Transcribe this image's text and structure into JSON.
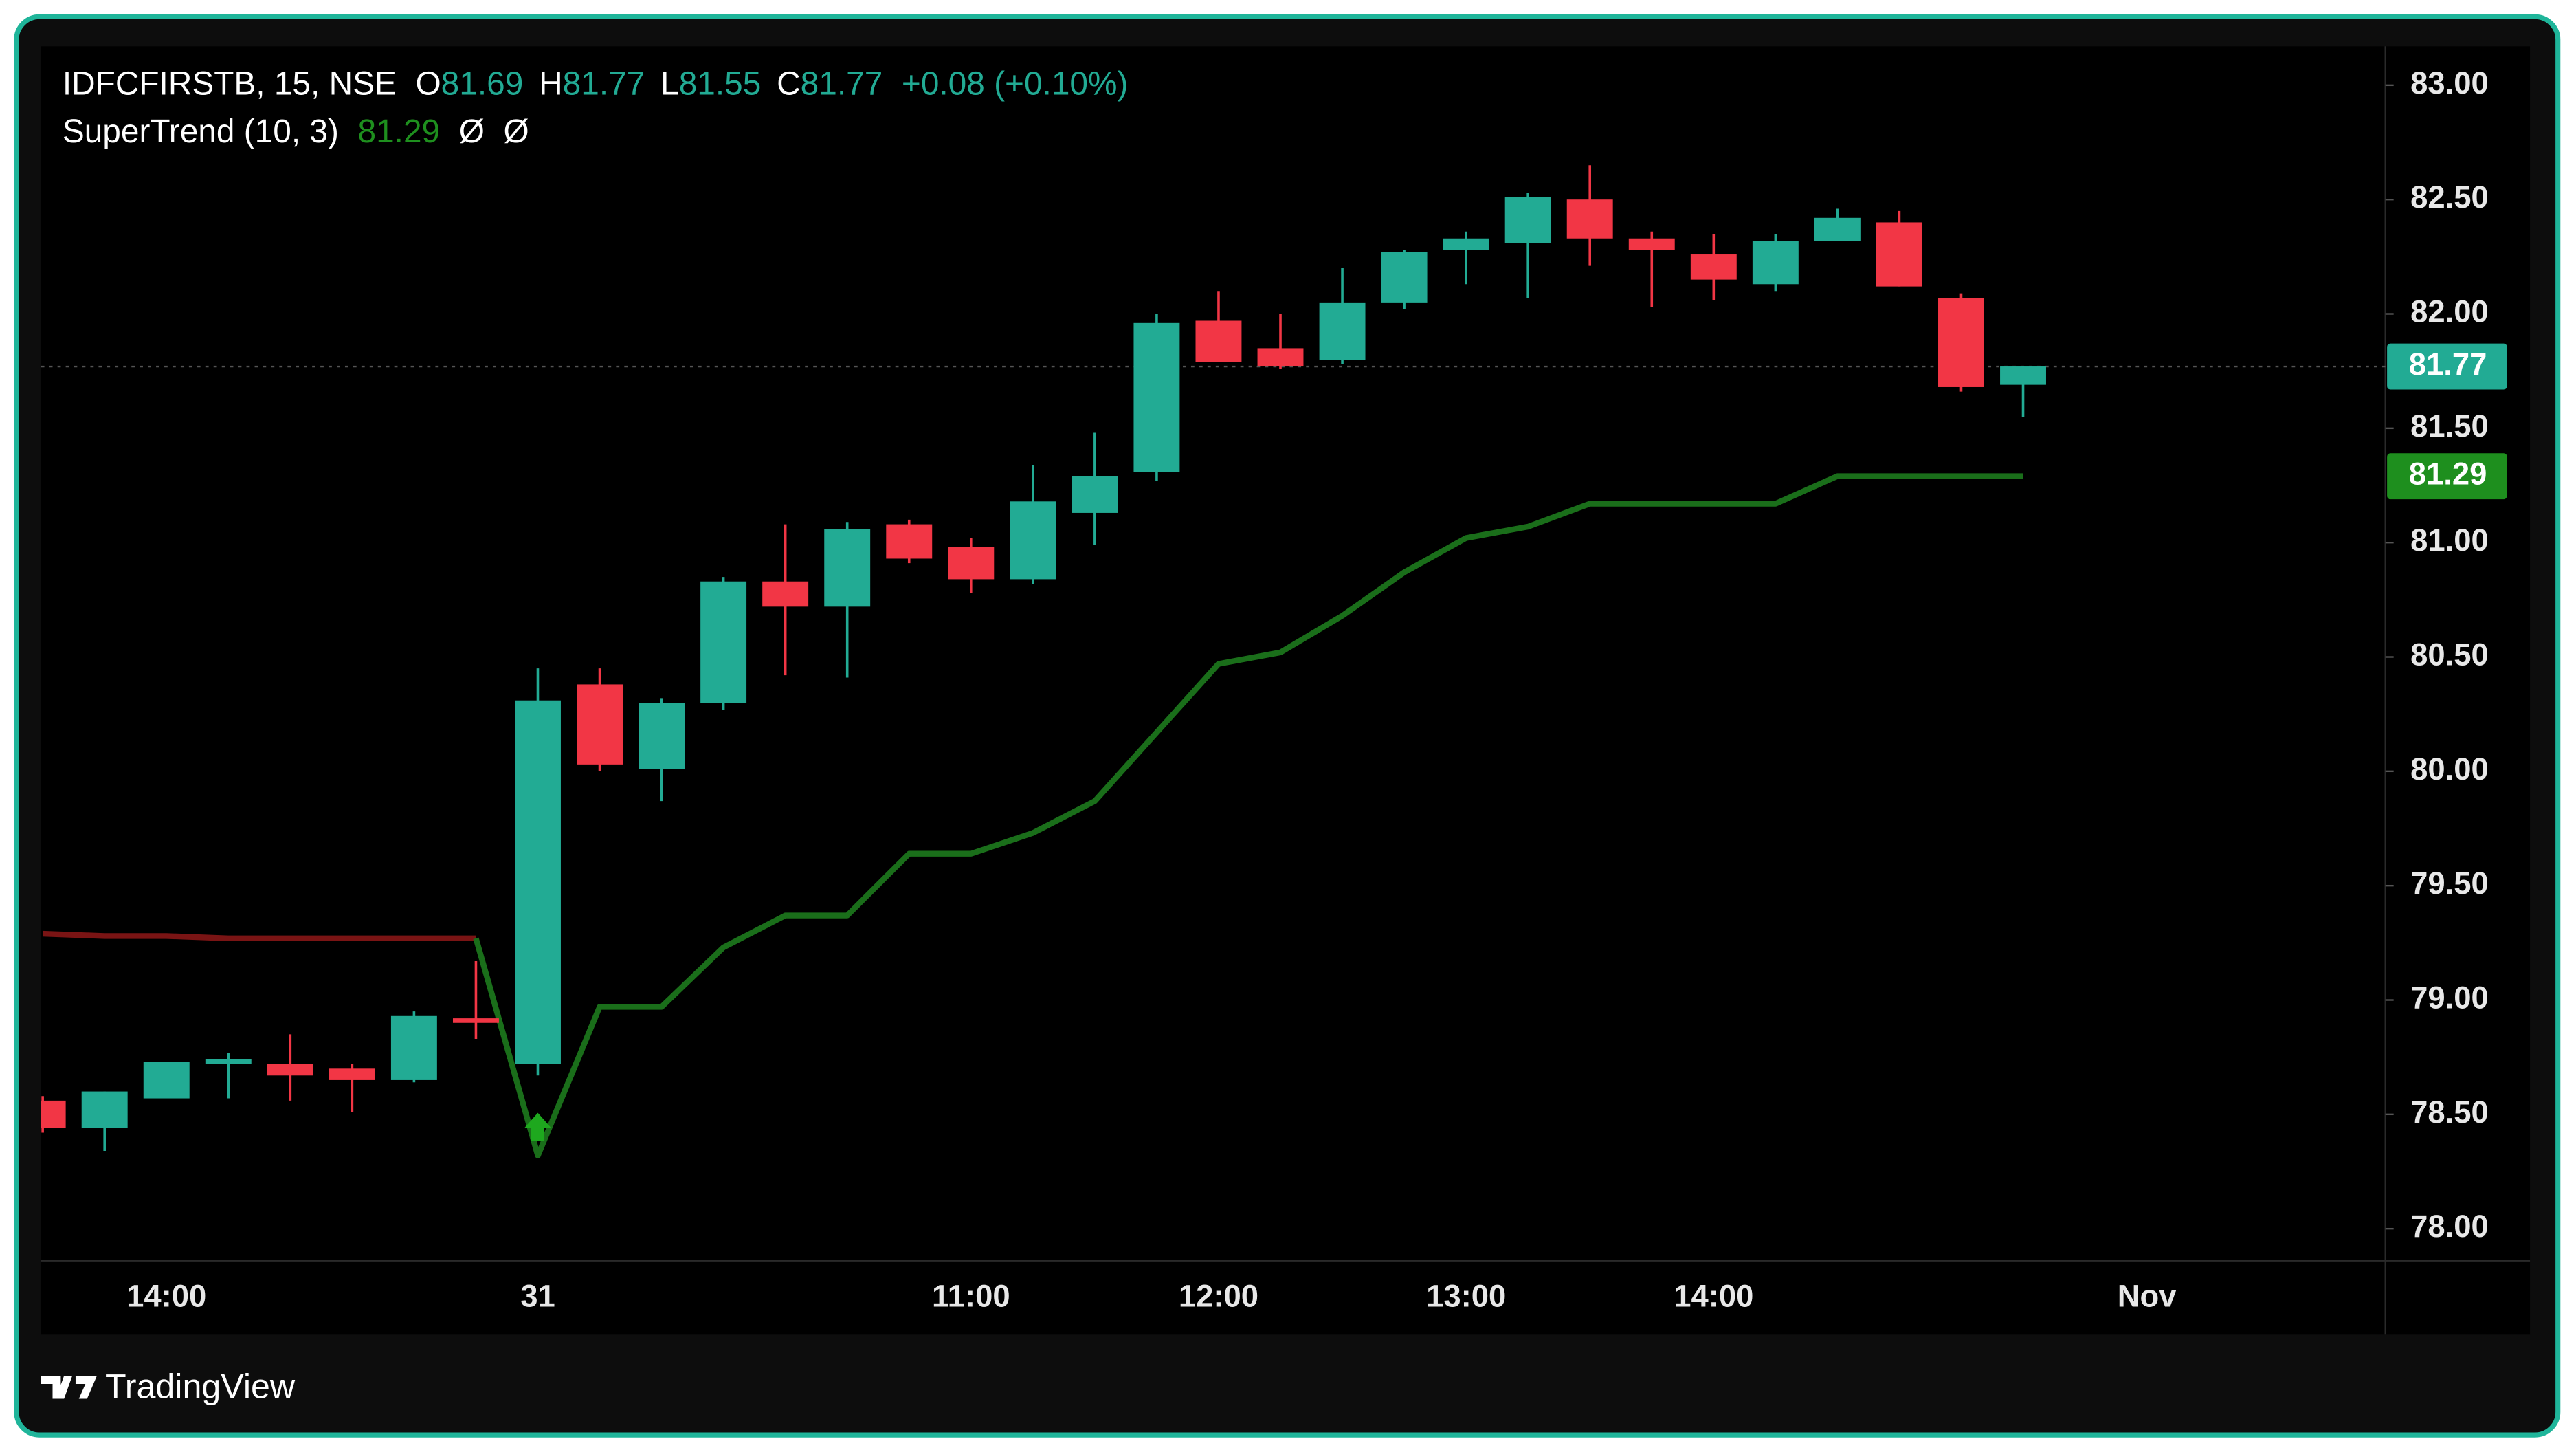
{
  "chart_data": {
    "type": "candlestick",
    "title": "IDFCFIRSTB, 15, NSE",
    "ohlc_letters": [
      "O",
      "H",
      "L",
      "C"
    ],
    "change": "+0.08 (+0.10%)",
    "brand": "TradingView",
    "up_color": "#22ab94",
    "down_color": "#f23645",
    "categories": [
      null,
      null,
      "14:00",
      null,
      null,
      null,
      null,
      null,
      "31",
      null,
      null,
      null,
      null,
      null,
      null,
      "11:00",
      null,
      null,
      null,
      "12:00",
      null,
      null,
      null,
      "13:00",
      null,
      null,
      null,
      "14:00",
      null,
      null,
      null,
      null,
      null,
      null,
      "Nov"
    ],
    "open": [
      78.56,
      78.44,
      78.57,
      78.72,
      78.72,
      78.7,
      78.65,
      78.92,
      78.72,
      80.38,
      80.01,
      80.3,
      80.83,
      80.72,
      81.08,
      80.98,
      80.84,
      81.13,
      81.31,
      81.97,
      81.85,
      81.8,
      82.05,
      82.28,
      82.31,
      82.5,
      82.33,
      82.26,
      82.13,
      82.32,
      82.4,
      82.07,
      81.69,
      null,
      null
    ],
    "high": [
      78.58,
      78.6,
      78.73,
      78.77,
      78.85,
      78.72,
      78.95,
      79.17,
      80.45,
      80.45,
      80.32,
      80.85,
      81.08,
      81.09,
      81.1,
      81.02,
      81.34,
      81.48,
      82.0,
      82.1,
      82.0,
      82.2,
      82.28,
      82.36,
      82.53,
      82.65,
      82.36,
      82.35,
      82.35,
      82.46,
      82.45,
      82.09,
      81.77,
      null,
      null
    ],
    "low": [
      78.42,
      78.34,
      78.57,
      78.57,
      78.56,
      78.51,
      78.64,
      78.83,
      78.67,
      80.0,
      79.87,
      80.27,
      80.42,
      80.41,
      80.91,
      80.78,
      80.82,
      80.99,
      81.27,
      81.79,
      81.76,
      81.78,
      82.02,
      82.13,
      82.07,
      82.21,
      82.03,
      82.06,
      82.1,
      82.32,
      82.12,
      81.66,
      81.55,
      null,
      null
    ],
    "close": [
      78.44,
      78.6,
      78.73,
      78.74,
      78.67,
      78.65,
      78.93,
      78.9,
      80.31,
      80.03,
      80.3,
      80.83,
      80.72,
      81.06,
      80.93,
      80.84,
      81.18,
      81.29,
      81.96,
      81.79,
      81.77,
      82.05,
      82.27,
      82.33,
      82.51,
      82.33,
      82.28,
      82.15,
      82.32,
      82.42,
      82.12,
      81.68,
      81.77,
      null,
      null
    ],
    "indicator": {
      "name": "SuperTrend (10, 3)",
      "status": [
        "Ø",
        "Ø"
      ],
      "up": {
        "color": "#1a6e1a",
        "label_color": "#1e8f1e",
        "values": [
          null,
          null,
          null,
          null,
          null,
          null,
          null,
          79.27,
          78.32,
          78.97,
          78.97,
          79.23,
          79.37,
          79.37,
          79.64,
          79.64,
          79.73,
          79.87,
          80.17,
          80.47,
          80.52,
          80.68,
          80.87,
          81.02,
          81.07,
          81.17,
          81.17,
          81.17,
          81.17,
          81.29,
          81.29,
          81.29,
          81.29,
          null,
          null
        ]
      },
      "down": {
        "color": "#7a1414",
        "values": [
          79.29,
          79.28,
          79.28,
          79.27,
          79.27,
          79.27,
          79.27,
          79.27,
          null,
          null,
          null,
          null,
          null,
          null,
          null,
          null,
          null,
          null,
          null,
          null,
          null,
          null,
          null,
          null,
          null,
          null,
          null,
          null,
          null,
          null,
          null,
          null,
          null,
          null,
          null
        ]
      }
    },
    "ylim": [
      77.86,
      83.17
    ],
    "yticks": [
      {
        "value": 78,
        "label": "78.00"
      },
      {
        "value": 78.5,
        "label": "78.50"
      },
      {
        "value": 79,
        "label": "79.00"
      },
      {
        "value": 79.5,
        "label": "79.50"
      },
      {
        "value": 80,
        "label": "80.00"
      },
      {
        "value": 80.5,
        "label": "80.50"
      },
      {
        "value": 81,
        "label": "81.00"
      },
      {
        "value": 81.5,
        "label": "81.50"
      },
      {
        "value": 82,
        "label": "82.00"
      },
      {
        "value": 82.5,
        "label": "82.50"
      },
      {
        "value": 83,
        "label": "83.00"
      }
    ]
  }
}
